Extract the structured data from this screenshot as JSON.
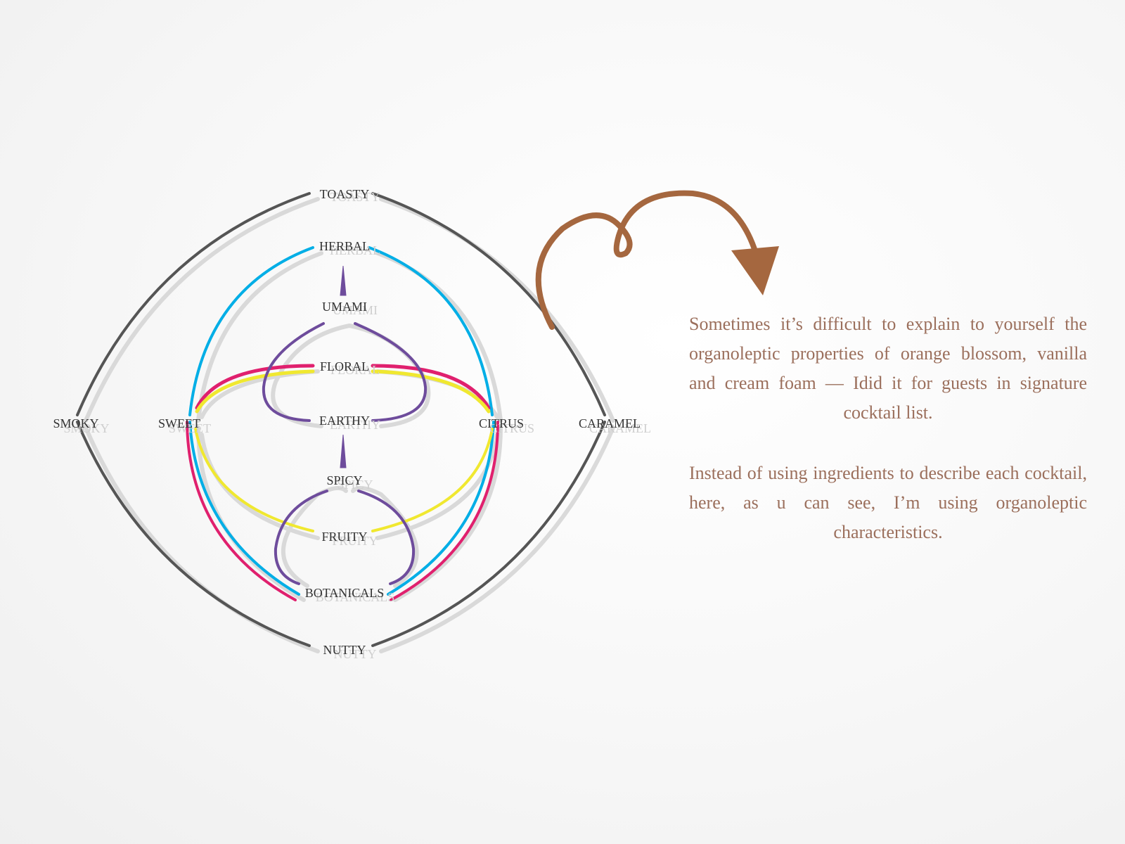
{
  "diagram": {
    "nodes": {
      "toasty": "TOASTY",
      "herbal": "HERBAL",
      "umami": "UMAMI",
      "floral": "FLORAL",
      "earthy": "EARTHY",
      "smoky": "SMOKY",
      "sweet": "SWEET",
      "citrus": "CITRUS",
      "caramel": "CARAMEL",
      "spicy": "SPICY",
      "fruity": "FRUITY",
      "botanicals": "BOTANICALS",
      "nutty": "NUTTY"
    },
    "colors": {
      "dark": "#555555",
      "shadow": "#d4d4d4",
      "cyan": "#00aee6",
      "magenta": "#e0206e",
      "yellow": "#f0e830",
      "purple": "#6e4c9c",
      "arrow": "#a5673f"
    }
  },
  "description": {
    "paragraph_1": "Sometimes it’s difficult to explain to yourself the organoleptic properties of orange blossom, vanilla and cream foam — Idid it for guests in signature cocktail list.",
    "paragraph_2": "Instead of using ingredients to describe each cocktail, here, as u can see, I’m using organoleptic characteristics."
  }
}
